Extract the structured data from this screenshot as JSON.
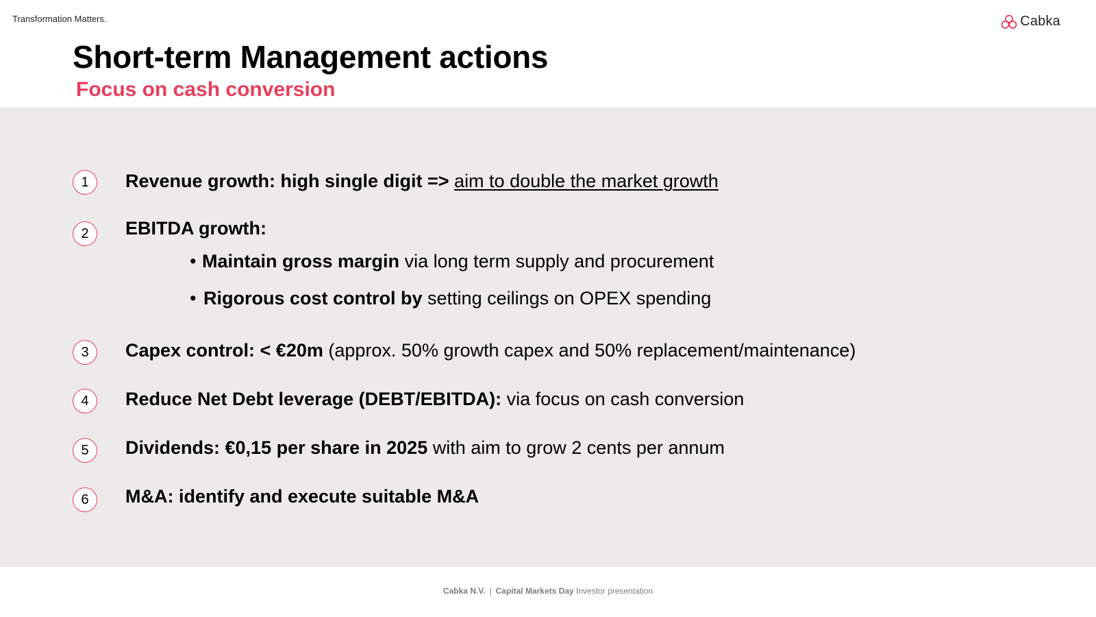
{
  "header": {
    "tagline": "Transformation Matters.",
    "logo_text": "Cabka",
    "logo_icon": "three-circles-logo-icon"
  },
  "title": "Short-term Management actions",
  "subtitle": "Focus on cash conversion",
  "colors": {
    "accent": "#e83e5c",
    "panel_bg": "#edebe9",
    "footer_text": "#7d7d7d"
  },
  "items": [
    {
      "num": "1",
      "bold": "Revenue growth: high single digit => ",
      "underline": "aim to double the market growth"
    },
    {
      "num": "2",
      "bold": "EBITDA growth:",
      "bullets": [
        {
          "bold": "Maintain gross margin",
          "rest": " via long term supply and procurement"
        },
        {
          "bold": "Rigorous cost control by",
          "rest": " setting ceilings on OPEX spending"
        }
      ]
    },
    {
      "num": "3",
      "bold": "Capex control: < €20m",
      "rest": " (approx. 50% growth capex and 50% replacement/maintenance)"
    },
    {
      "num": "4",
      "bold": "Reduce Net Debt leverage (DEBT/EBITDA):",
      "rest": " via focus on cash conversion"
    },
    {
      "num": "5",
      "bold": "Dividends: €0,15 per share in 2025",
      "rest": " with aim to grow 2 cents per annum"
    },
    {
      "num": "6",
      "bold": "M&A: identify and execute suitable M&A"
    }
  ],
  "footer": {
    "company": "Cabka N.V.",
    "separator": "|",
    "event": "Capital Markets Day",
    "doc": "Investor presentation"
  }
}
